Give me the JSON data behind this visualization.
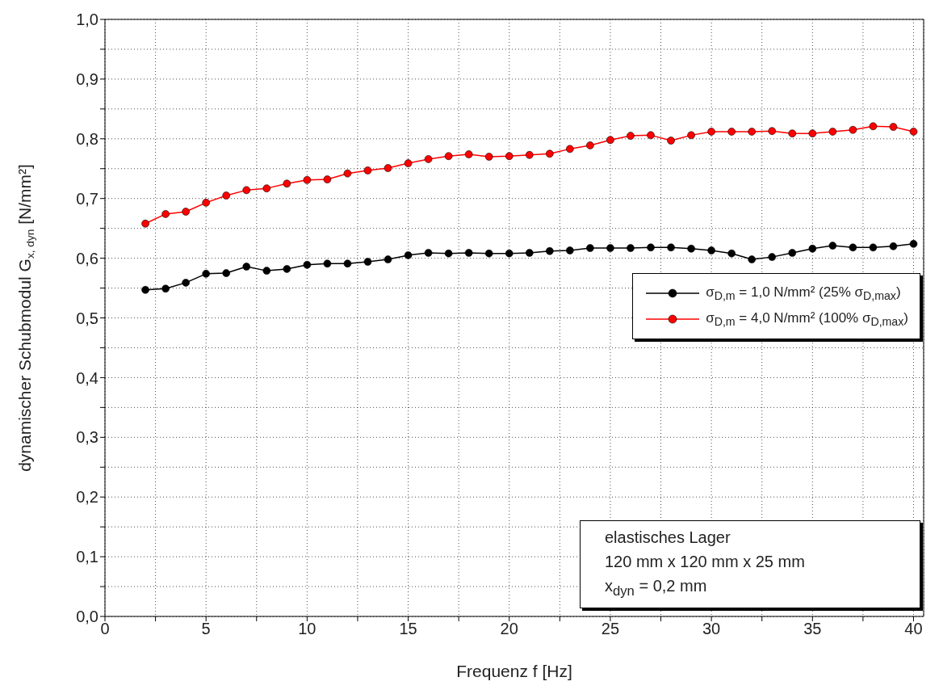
{
  "chart_data": {
    "type": "line",
    "xlabel": "Frequenz f  [Hz]",
    "ylabel": "dynamischer Schubmodul  G$_{x, dyn}$  [N/mm²]",
    "x": [
      2,
      3,
      4,
      5,
      6,
      7,
      8,
      9,
      10,
      11,
      12,
      13,
      14,
      15,
      16,
      17,
      18,
      19,
      20,
      21,
      22,
      23,
      24,
      25,
      26,
      27,
      28,
      29,
      30,
      31,
      32,
      33,
      34,
      35,
      36,
      37,
      38,
      39,
      40
    ],
    "series": [
      {
        "name": "σ$_{D,m}$ = 1,0 N/mm² (25% σ$_{D,max}$)",
        "color": "#000000",
        "values": [
          0.547,
          0.549,
          0.559,
          0.574,
          0.575,
          0.586,
          0.579,
          0.582,
          0.589,
          0.591,
          0.591,
          0.594,
          0.598,
          0.605,
          0.609,
          0.608,
          0.609,
          0.608,
          0.608,
          0.609,
          0.612,
          0.613,
          0.617,
          0.617,
          0.617,
          0.618,
          0.618,
          0.616,
          0.613,
          0.608,
          0.598,
          0.602,
          0.609,
          0.616,
          0.621,
          0.618,
          0.618,
          0.62,
          0.624
        ]
      },
      {
        "name": "σ$_{D,m}$ = 4,0 N/mm² (100% σ$_{D,max}$)",
        "color": "#ff0000",
        "values": [
          0.658,
          0.674,
          0.678,
          0.693,
          0.705,
          0.714,
          0.717,
          0.725,
          0.731,
          0.732,
          0.742,
          0.747,
          0.751,
          0.759,
          0.766,
          0.771,
          0.774,
          0.77,
          0.771,
          0.773,
          0.775,
          0.783,
          0.789,
          0.798,
          0.805,
          0.806,
          0.797,
          0.806,
          0.812,
          0.812,
          0.812,
          0.813,
          0.809,
          0.809,
          0.812,
          0.815,
          0.821,
          0.82,
          0.812
        ]
      }
    ],
    "xlim": [
      0,
      40.5
    ],
    "xticks": [
      0,
      {
        "value": 2.5,
        "label": null
      },
      5,
      {
        "value": 7.5,
        "label": null
      },
      10,
      {
        "value": 12.5,
        "label": null
      },
      15,
      {
        "value": 17.5,
        "label": null
      },
      20,
      {
        "value": 22.5,
        "label": null
      },
      25,
      {
        "value": 27.5,
        "label": null
      },
      30,
      {
        "value": 32.5,
        "label": null
      },
      35,
      {
        "value": 37.5,
        "label": null
      },
      40
    ],
    "ylim": [
      0,
      1
    ],
    "yticks": [
      {
        "value": 0,
        "label": "0,0"
      },
      {
        "value": 0.05,
        "label": null
      },
      {
        "value": 0.1,
        "label": "0,1"
      },
      {
        "value": 0.15,
        "label": null
      },
      {
        "value": 0.2,
        "label": "0,2"
      },
      {
        "value": 0.25,
        "label": null
      },
      {
        "value": 0.3,
        "label": "0,3"
      },
      {
        "value": 0.35,
        "label": null
      },
      {
        "value": 0.4,
        "label": "0,4"
      },
      {
        "value": 0.45,
        "label": null
      },
      {
        "value": 0.5,
        "label": "0,5"
      },
      {
        "value": 0.55,
        "label": null
      },
      {
        "value": 0.6,
        "label": "0,6"
      },
      {
        "value": 0.65,
        "label": null
      },
      {
        "value": 0.7,
        "label": "0,7"
      },
      {
        "value": 0.75,
        "label": null
      },
      {
        "value": 0.8,
        "label": "0,8"
      },
      {
        "value": 0.85,
        "label": null
      },
      {
        "value": 0.9,
        "label": "0,9"
      },
      {
        "value": 0.95,
        "label": null
      },
      {
        "value": 1,
        "label": "1,0"
      }
    ],
    "grid": true,
    "legend": "right",
    "marker": "circle",
    "line_style": "solid",
    "annotations": [
      "elastisches Lager",
      "120 mm x 120 mm x 25 mm",
      "x$_{dyn}$ = 0,2 mm"
    ]
  }
}
